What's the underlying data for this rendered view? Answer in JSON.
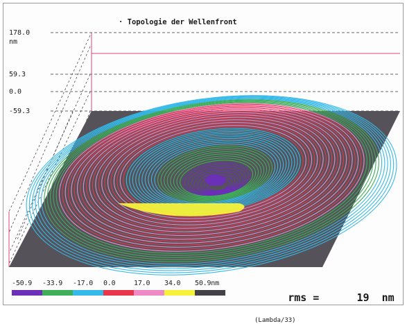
{
  "title": "· Topologie der Wellenfront",
  "axis": {
    "unit": "nm",
    "ticks": [
      {
        "label": "178.0",
        "value": 178.0
      },
      {
        "label": "59.3",
        "value": 59.3
      },
      {
        "label": "0.0",
        "value": 0.0
      },
      {
        "label": "-59.3",
        "value": -59.3
      }
    ]
  },
  "colors": {
    "plane": "#55525a",
    "guide": "#e0447a",
    "dash": "#333333"
  },
  "legend": {
    "values": [
      "-50.9",
      "-33.9",
      "-17.0",
      "0.0",
      "17.0",
      "34.0",
      "50.9nm"
    ],
    "colors": [
      "#6b2fb8",
      "#3fae5b",
      "#36b9e8",
      "#e8364c",
      "#f08ac6",
      "#f6f23a",
      "#44404a"
    ]
  },
  "rms": {
    "label": "rms =",
    "value": "19",
    "unit": "nm",
    "note": "(Lambda/33)"
  },
  "chart_data": {
    "type": "surface-3d",
    "title": "· Topologie der Wellenfront",
    "zlabel": "nm",
    "zticks": [
      178.0,
      59.3,
      0.0,
      -59.3
    ],
    "color_scale": [
      {
        "value": -50.9,
        "color": "#6b2fb8"
      },
      {
        "value": -33.9,
        "color": "#3fae5b"
      },
      {
        "value": -17.0,
        "color": "#36b9e8"
      },
      {
        "value": 0.0,
        "color": "#e8364c"
      },
      {
        "value": 17.0,
        "color": "#f08ac6"
      },
      {
        "value": 34.0,
        "color": "#f6f23a"
      },
      {
        "value": 50.9,
        "color": "#44404a"
      }
    ],
    "rms_nm": 19,
    "rms_fraction": "Lambda/33"
  }
}
